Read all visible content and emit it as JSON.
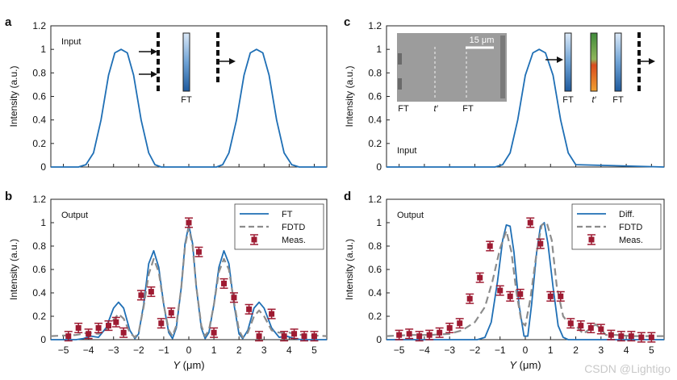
{
  "chart_data": [
    {
      "panel": "a",
      "type": "line",
      "inset_label": "Input",
      "xlabel": "",
      "ylabel": "Intensity (a.u.)",
      "xlim": [
        -5.5,
        5.5
      ],
      "ylim": [
        0,
        1.2
      ],
      "yticks": [
        "0",
        "0.2",
        "0.4",
        "0.6",
        "0.8",
        "1",
        "1.2"
      ],
      "xticks": [],
      "series": [
        {
          "name": "",
          "color": "#1f6fb5",
          "dash": "solid",
          "x": [
            -5.5,
            -4.4,
            -4.1,
            -3.8,
            -3.5,
            -3.2,
            -2.95,
            -2.7,
            -2.45,
            -2.2,
            -1.9,
            -1.6,
            -1.35,
            -1.1,
            1.1,
            1.35,
            1.6,
            1.9,
            2.2,
            2.45,
            2.7,
            2.95,
            3.2,
            3.5,
            3.8,
            4.1,
            4.4,
            5.5
          ],
          "y": [
            0,
            0,
            0.02,
            0.12,
            0.4,
            0.78,
            0.97,
            1.0,
            0.97,
            0.78,
            0.4,
            0.12,
            0.02,
            0,
            0,
            0.02,
            0.12,
            0.4,
            0.78,
            0.97,
            1.0,
            0.97,
            0.78,
            0.4,
            0.12,
            0.02,
            0,
            0
          ]
        }
      ],
      "schematic": {
        "label": "FT",
        "arrows": "in-2-out-1"
      }
    },
    {
      "panel": "c",
      "type": "line",
      "inset_label": "Input",
      "xlabel": "",
      "ylabel": "Intensity (a.u.)",
      "xlim": [
        -5.5,
        5.5
      ],
      "ylim": [
        0,
        1.2
      ],
      "yticks": [
        "0",
        "0.2",
        "0.4",
        "0.6",
        "0.8",
        "1",
        "1.2"
      ],
      "xticks": [],
      "series": [
        {
          "name": "",
          "color": "#1f6fb5",
          "dash": "solid",
          "x": [
            -5.5,
            -1.2,
            -0.9,
            -0.6,
            -0.3,
            0,
            0.3,
            0.55,
            0.8,
            1.1,
            1.4,
            1.7,
            2.0,
            5.5
          ],
          "y": [
            0,
            0,
            0.02,
            0.12,
            0.4,
            0.78,
            0.97,
            1.0,
            0.97,
            0.78,
            0.4,
            0.12,
            0.02,
            0
          ]
        }
      ],
      "schematic": {
        "labels": [
          "FT",
          "t′",
          "FT"
        ],
        "micrograph_scale": "15 μm",
        "micrograph_labels": [
          "FT",
          "t′",
          "FT"
        ]
      }
    },
    {
      "panel": "b",
      "type": "line",
      "inset_label": "Output",
      "xlabel": "Y (μm)",
      "ylabel": "Intensity (a.u.)",
      "xlim": [
        -5.5,
        5.5
      ],
      "ylim": [
        0,
        1.2
      ],
      "yticks": [
        "0",
        "0.2",
        "0.4",
        "0.6",
        "0.8",
        "1",
        "1.2"
      ],
      "xticks": [
        "−5",
        "−4",
        "−3",
        "−2",
        "−1",
        "0",
        "1",
        "2",
        "3",
        "4",
        "5"
      ],
      "legend": {
        "position": "top-right"
      },
      "series": [
        {
          "name": "FT",
          "color": "#1f6fb5",
          "dash": "solid",
          "x": [
            -5.5,
            -4.5,
            -4.2,
            -3.9,
            -3.6,
            -3.3,
            -3.0,
            -2.8,
            -2.6,
            -2.35,
            -2.15,
            -2.0,
            -1.8,
            -1.6,
            -1.4,
            -1.2,
            -1.0,
            -0.8,
            -0.65,
            -0.5,
            -0.3,
            -0.15,
            0,
            0.15,
            0.3,
            0.5,
            0.65,
            0.8,
            1.0,
            1.2,
            1.4,
            1.6,
            1.8,
            2.0,
            2.15,
            2.35,
            2.6,
            2.8,
            3.0,
            3.3,
            3.6,
            3.9,
            4.2,
            4.5,
            5.5
          ],
          "y": [
            0,
            0,
            0.01,
            0.03,
            0.02,
            0.1,
            0.27,
            0.32,
            0.27,
            0.08,
            0.01,
            0.05,
            0.3,
            0.65,
            0.76,
            0.62,
            0.3,
            0.06,
            0.01,
            0.1,
            0.45,
            0.82,
            0.98,
            0.82,
            0.45,
            0.1,
            0.01,
            0.06,
            0.3,
            0.62,
            0.76,
            0.65,
            0.3,
            0.05,
            0.01,
            0.08,
            0.27,
            0.32,
            0.27,
            0.1,
            0.02,
            0.03,
            0.01,
            0,
            0
          ]
        },
        {
          "name": "FDTD",
          "color": "#8c8c8c",
          "dash": "dashed",
          "x": [
            -5.5,
            -4.5,
            -4.0,
            -3.6,
            -3.3,
            -3.0,
            -2.8,
            -2.6,
            -2.35,
            -2.15,
            -2.0,
            -1.8,
            -1.6,
            -1.4,
            -1.2,
            -1.0,
            -0.8,
            -0.65,
            -0.5,
            -0.3,
            -0.15,
            0,
            0.15,
            0.3,
            0.5,
            0.65,
            0.8,
            1.0,
            1.2,
            1.4,
            1.6,
            1.8,
            2.0,
            2.15,
            2.35,
            2.6,
            2.8,
            3.0,
            3.3,
            3.6,
            4.0,
            4.5,
            5.5
          ],
          "y": [
            0.03,
            0.04,
            0.06,
            0.05,
            0.08,
            0.17,
            0.22,
            0.18,
            0.06,
            0.02,
            0.06,
            0.28,
            0.56,
            0.69,
            0.58,
            0.3,
            0.08,
            0.03,
            0.12,
            0.45,
            0.8,
            0.96,
            0.8,
            0.45,
            0.12,
            0.03,
            0.08,
            0.3,
            0.58,
            0.69,
            0.6,
            0.32,
            0.08,
            0.02,
            0.06,
            0.2,
            0.25,
            0.2,
            0.08,
            0.06,
            0.06,
            0.04,
            0.03
          ]
        }
      ],
      "measured": {
        "name": "Meas.",
        "color": "#9e1b32",
        "x": [
          -4.8,
          -4.4,
          -4.0,
          -3.6,
          -3.2,
          -2.9,
          -2.6,
          -1.9,
          -1.5,
          -1.1,
          -0.7,
          0,
          0.4,
          1.0,
          1.4,
          1.8,
          2.4,
          2.8,
          3.3,
          3.8,
          4.2,
          4.6,
          5.0
        ],
        "y": [
          0.03,
          0.1,
          0.05,
          0.1,
          0.12,
          0.15,
          0.06,
          0.38,
          0.41,
          0.14,
          0.23,
          1.0,
          0.75,
          0.06,
          0.48,
          0.36,
          0.26,
          0.03,
          0.22,
          0.03,
          0.05,
          0.03,
          0.03
        ],
        "err": 0.04
      }
    },
    {
      "panel": "d",
      "type": "line",
      "inset_label": "Output",
      "xlabel": "Y (μm)",
      "ylabel": "Intensity (a.u.)",
      "xlim": [
        -5.5,
        5.5
      ],
      "ylim": [
        0,
        1.2
      ],
      "yticks": [
        "0",
        "0.2",
        "0.4",
        "0.6",
        "0.8",
        "1",
        "1.2"
      ],
      "xticks": [
        "−5",
        "−4",
        "−3",
        "−2",
        "−1",
        "0",
        "1",
        "2",
        "3",
        "4",
        "5"
      ],
      "legend": {
        "position": "top-right"
      },
      "series": [
        {
          "name": "Diff.",
          "color": "#1f6fb5",
          "dash": "solid",
          "x": [
            -5.5,
            -1.9,
            -1.6,
            -1.35,
            -1.1,
            -0.9,
            -0.75,
            -0.6,
            -0.45,
            -0.25,
            -0.05,
            0.1,
            0.25,
            0.45,
            0.6,
            0.75,
            0.9,
            1.1,
            1.3,
            1.5,
            1.7,
            5.5
          ],
          "y": [
            0,
            0,
            0.02,
            0.15,
            0.5,
            0.85,
            0.98,
            0.97,
            0.75,
            0.3,
            0.03,
            0.03,
            0.3,
            0.75,
            0.97,
            1.0,
            0.82,
            0.45,
            0.12,
            0.02,
            0,
            0
          ]
        },
        {
          "name": "FDTD",
          "color": "#8c8c8c",
          "dash": "dashed",
          "x": [
            -5.5,
            -4.5,
            -3.8,
            -3.0,
            -2.5,
            -2.0,
            -1.6,
            -1.3,
            -1.0,
            -0.75,
            -0.55,
            -0.35,
            -0.15,
            0,
            0.2,
            0.45,
            0.65,
            0.85,
            1.05,
            1.25,
            1.5,
            1.8,
            2.0,
            2.3,
            2.6,
            2.8,
            3.2,
            3.6,
            4.2,
            5.5
          ],
          "y": [
            0.03,
            0.04,
            0.04,
            0.05,
            0.08,
            0.15,
            0.28,
            0.5,
            0.78,
            0.93,
            0.75,
            0.4,
            0.15,
            0.12,
            0.35,
            0.75,
            0.98,
            1.0,
            0.85,
            0.45,
            0.2,
            0.12,
            0.12,
            0.05,
            0.1,
            0.13,
            0.04,
            0.04,
            0.03,
            0.03
          ]
        }
      ],
      "measured": {
        "name": "Meas.",
        "color": "#9e1b32",
        "x": [
          -5.0,
          -4.6,
          -4.2,
          -3.8,
          -3.4,
          -3.0,
          -2.6,
          -2.2,
          -1.8,
          -1.4,
          -1.0,
          -0.6,
          -0.2,
          0.2,
          0.6,
          1.0,
          1.4,
          1.8,
          2.2,
          2.6,
          3.0,
          3.4,
          3.8,
          4.2,
          4.6,
          5.0
        ],
        "y": [
          0.04,
          0.05,
          0.03,
          0.04,
          0.06,
          0.1,
          0.14,
          0.35,
          0.53,
          0.8,
          0.42,
          0.37,
          0.39,
          1.0,
          0.82,
          0.37,
          0.37,
          0.14,
          0.12,
          0.1,
          0.09,
          0.04,
          0.03,
          0.03,
          0.02,
          0.02
        ],
        "err": 0.04
      }
    }
  ],
  "panel_letters": [
    "a",
    "c",
    "b",
    "d"
  ],
  "watermark": "CSDN @Lightigo"
}
